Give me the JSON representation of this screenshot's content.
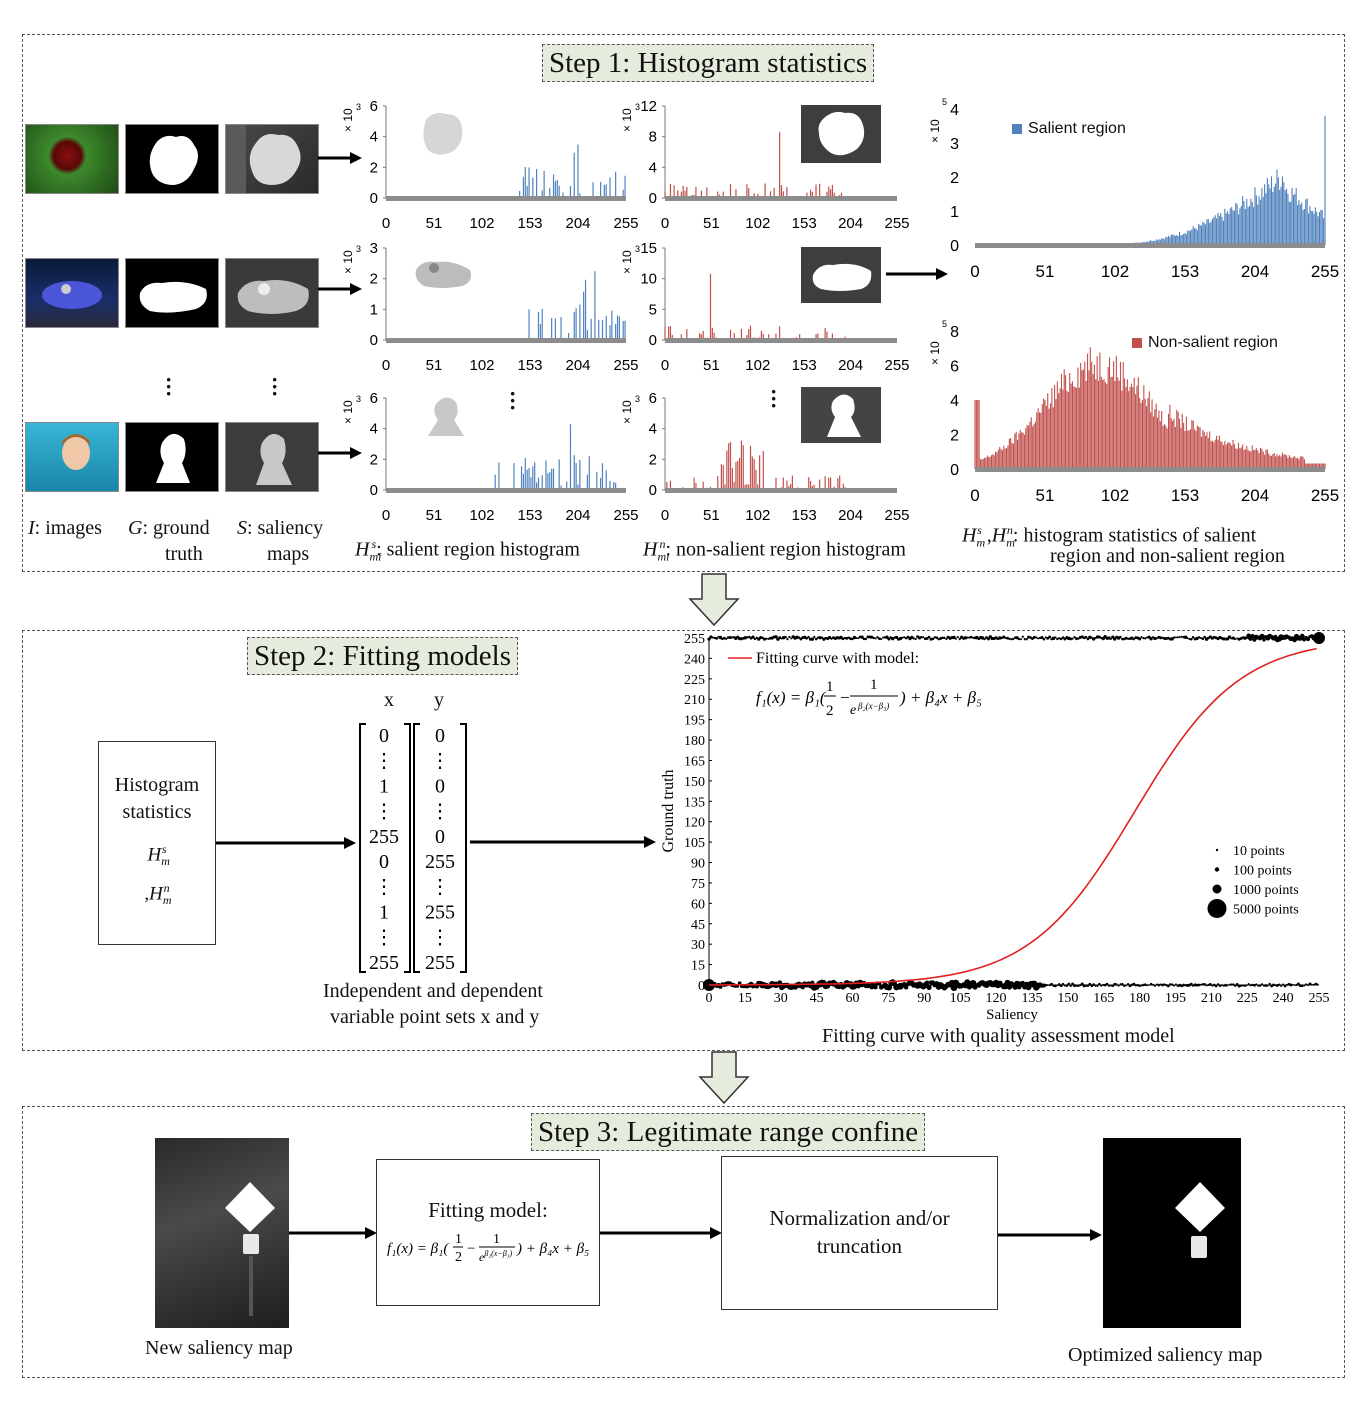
{
  "step1": {
    "title": "Step 1: Histogram statistics",
    "col_labels": {
      "images": ": images",
      "images_sym": "I",
      "gt_sym": "G",
      "gt_l1": ": ground",
      "gt_l2": "truth",
      "sal_sym": "S",
      "sal_l1": ": saliency",
      "sal_l2": "maps"
    },
    "salient_hist_label": ": salient region histogram",
    "nonsalient_hist_label": ": non-salient region histogram",
    "combined_label_l1": ": histogram statistics of salient",
    "combined_label_l2": "region and  non-salient region",
    "x_ticks": [
      "0",
      "51",
      "102",
      "153",
      "204",
      "255"
    ],
    "small_hists": [
      {
        "scale": "× 10",
        "exp": "3",
        "y_ticks": [
          "6",
          "4",
          "2",
          "0"
        ],
        "ymax": 6
      },
      {
        "scale": "× 10",
        "exp": "3",
        "y_ticks": [
          "12",
          "8",
          "4",
          "0"
        ],
        "ymax": 12
      },
      {
        "scale": "× 10",
        "exp": "3",
        "y_ticks": [
          "3",
          "2",
          "1",
          "0"
        ],
        "ymax": 3
      },
      {
        "scale": "× 10",
        "exp": "3",
        "y_ticks": [
          "15",
          "10",
          "5",
          "0"
        ],
        "ymax": 15
      },
      {
        "scale": "× 10",
        "exp": "3",
        "y_ticks": [
          "6",
          "4",
          "2",
          "0"
        ],
        "ymax": 6
      },
      {
        "scale": "× 10",
        "exp": "3",
        "y_ticks": [
          "6",
          "4",
          "2",
          "0"
        ],
        "ymax": 6
      }
    ],
    "big_salient": {
      "legend": "Salient region",
      "scale": "× 10",
      "exp": "5",
      "y_ticks": [
        "4",
        "3",
        "2",
        "1",
        "0"
      ],
      "color": "#4f81bd"
    },
    "big_nonsalient": {
      "legend": "Non-salient region",
      "scale": "× 10",
      "exp": "5",
      "y_ticks": [
        "8",
        "6",
        "4",
        "2",
        "0"
      ],
      "color": "#c0504d"
    }
  },
  "step2": {
    "title": "Step 2: Fitting models",
    "box_l1": "Histogram",
    "box_l2": "statistics",
    "x_header": "x",
    "y_header": "y",
    "x_vector": [
      "0",
      "⋮",
      "1",
      "⋮",
      "255",
      "0",
      "⋮",
      "1",
      "⋮",
      "255"
    ],
    "y_vector": [
      "0",
      "⋮",
      "0",
      "⋮",
      "0",
      "255",
      "⋮",
      "255",
      "⋮",
      "255"
    ],
    "caption_l1": "Independent and dependent",
    "caption_l2": "variable point sets x and y",
    "plot_caption": "Fitting curve with quality assessment model",
    "chart_data": {
      "type": "scatter",
      "xlabel": "Saliency",
      "ylabel": "Ground truth",
      "x_ticks": [
        "0",
        "15",
        "30",
        "45",
        "60",
        "75",
        "90",
        "105",
        "120",
        "135",
        "150",
        "165",
        "180",
        "195",
        "210",
        "225",
        "240",
        "255"
      ],
      "y_ticks": [
        "0",
        "15",
        "30",
        "45",
        "60",
        "75",
        "90",
        "105",
        "120",
        "135",
        "150",
        "165",
        "180",
        "195",
        "210",
        "225",
        "240",
        "255"
      ],
      "xlim": [
        0,
        255
      ],
      "ylim": [
        0,
        255
      ],
      "curve_legend": "Fitting curve with model:",
      "curve_color": "#e02020",
      "size_legend": [
        "10 points",
        "100 points",
        "1000 points",
        "5000 points"
      ],
      "series": [
        {
          "y": 0,
          "x_range": [
            0,
            255
          ]
        },
        {
          "y": 255,
          "x_range": [
            0,
            255
          ]
        }
      ]
    }
  },
  "step3": {
    "title": "Step 3: Legitimate range confine",
    "new_map_label": "New saliency map",
    "fit_box_title": "Fitting model:",
    "norm_l1": "Normalization and/or",
    "norm_l2": "truncation",
    "opt_map_label": "Optimized saliency map"
  }
}
